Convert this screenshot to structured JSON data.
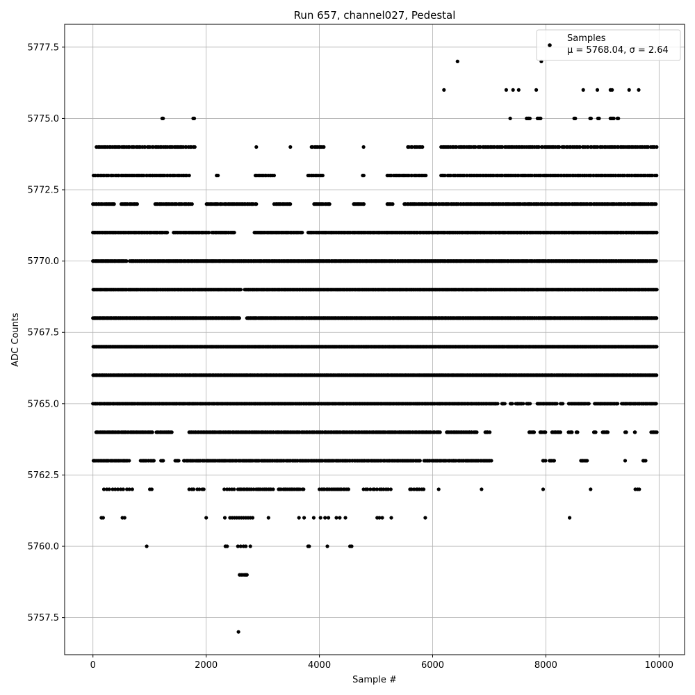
{
  "chart_data": {
    "type": "scatter",
    "title": "Run 657, channel027, Pedestal",
    "xlabel": "Sample #",
    "ylabel": "ADC Counts",
    "xlim": [
      -500,
      10450
    ],
    "ylim": [
      5756.2,
      5778.3
    ],
    "xticks": [
      0,
      2000,
      4000,
      6000,
      8000,
      10000
    ],
    "xtick_labels": [
      "0",
      "2000",
      "4000",
      "6000",
      "8000",
      "10000"
    ],
    "yticks": [
      5757.5,
      5760.0,
      5762.5,
      5765.0,
      5767.5,
      5770.0,
      5772.5,
      5775.0,
      5777.5
    ],
    "ytick_labels": [
      "5757.5",
      "5760.0",
      "5762.5",
      "5765.0",
      "5767.5",
      "5770.0",
      "5772.5",
      "5775.0",
      "5777.5"
    ],
    "grid": true,
    "legend_position": "top-right",
    "legend": {
      "series_label": "Samples",
      "stats_label": "μ = 5768.04, σ = 2.64"
    },
    "series": [
      {
        "name": "Samples",
        "color": "#000000",
        "level_x_ranges": [
          {
            "y": 5757,
            "x": [
              2570
            ]
          },
          {
            "y": 5759,
            "x": [
              2590,
              2620,
              2650,
              2680,
              2700,
              2720
            ]
          },
          {
            "y": 5760,
            "x": [
              950,
              2340,
              2370,
              2560,
              2610,
              2660,
              2700,
              2780,
              3800,
              3820,
              4140,
              4540,
              4570
            ]
          },
          {
            "y": 5761,
            "x": [
              150,
              180,
              520,
              560,
              2000,
              2330,
              2420,
              2460,
              2500,
              2540,
              2580,
              2620,
              2660,
              2700,
              2740,
              2780,
              2820,
              3100,
              3640,
              3730,
              3900,
              4020,
              4100,
              4160,
              4300,
              4360,
              4460,
              5020,
              5060,
              5110,
              5270,
              5870,
              8420
            ]
          },
          {
            "y": 5776,
            "x": [
              6200,
              7300,
              7420,
              7520,
              7830,
              8660,
              8910,
              9140,
              9170,
              9470,
              9640
            ]
          },
          {
            "y": 5777,
            "x": [
              6440,
              7920
            ]
          }
        ],
        "level_ranges": [
          {
            "y": 5762,
            "x": [
              [
                190,
                720
              ]
            ],
            "step": 50,
            "jitter": 14
          },
          {
            "y": 5762,
            "x": [
              [
                1000,
                1040
              ]
            ],
            "step": 40,
            "jitter": 5
          },
          {
            "y": 5762,
            "x": [
              [
                1700,
                2000
              ]
            ],
            "step": 45,
            "jitter": 14
          },
          {
            "y": 5762,
            "x": [
              [
                2320,
                2500
              ]
            ],
            "step": 45,
            "jitter": 10
          },
          {
            "y": 5762,
            "x": [
              [
                2560,
                2850
              ],
              [
                2880,
                3200
              ],
              [
                3270,
                3720
              ]
            ],
            "step": 30,
            "jitter": 10
          },
          {
            "y": 5762,
            "x": [
              [
                4000,
                4520
              ]
            ],
            "step": 30,
            "jitter": 10
          },
          {
            "y": 5762,
            "x": [
              [
                4780,
                5290
              ]
            ],
            "step": 40,
            "jitter": 14
          },
          {
            "y": 5762,
            "x": [
              [
                5600,
                5870
              ],
              [
                6100,
                6110
              ],
              [
                6860,
                6870
              ],
              [
                7950,
                7960
              ],
              [
                8790,
                8800
              ],
              [
                9580,
                9650
              ]
            ],
            "step": 35,
            "jitter": 10
          },
          {
            "y": 5763,
            "x": [
              [
                0,
                650
              ],
              [
                840,
                1100
              ],
              [
                1200,
                1250
              ],
              [
                1450,
                1520
              ],
              [
                1600,
                5800
              ],
              [
                5850,
                7050
              ],
              [
                7950,
                8000
              ],
              [
                8060,
                8160
              ],
              [
                8620,
                8740
              ],
              [
                9400,
                9420
              ],
              [
                9720,
                9780
              ]
            ],
            "step": 22,
            "jitter": 10
          },
          {
            "y": 5764,
            "x": [
              [
                50,
                1050
              ],
              [
                1120,
                1400
              ],
              [
                1700,
                6150
              ],
              [
                6240,
                6780
              ],
              [
                6920,
                7010
              ],
              [
                7700,
                7800
              ],
              [
                7900,
                8000
              ],
              [
                8100,
                8260
              ],
              [
                8400,
                8460
              ],
              [
                8540,
                8560
              ],
              [
                8840,
                8880
              ],
              [
                9000,
                9100
              ],
              [
                9400,
                9420
              ],
              [
                9560,
                9580
              ],
              [
                9860,
                9960
              ]
            ],
            "step": 20,
            "jitter": 10
          },
          {
            "y": 5765,
            "x": [
              [
                0,
                7150
              ],
              [
                7220,
                7290
              ],
              [
                7370,
                7410
              ],
              [
                7470,
                7600
              ],
              [
                7660,
                7720
              ],
              [
                7850,
                8200
              ],
              [
                8260,
                8300
              ],
              [
                8400,
                8760
              ],
              [
                8860,
                9280
              ],
              [
                9340,
                9960
              ]
            ],
            "step": 18,
            "jitter": 8
          },
          {
            "y": 5766,
            "x": [
              [
                0,
                9960
              ]
            ],
            "step": 14,
            "jitter": 6
          },
          {
            "y": 5767,
            "x": [
              [
                0,
                9960
              ]
            ],
            "step": 12,
            "jitter": 6
          },
          {
            "y": 5768,
            "x": [
              [
                0,
                2600
              ],
              [
                2720,
                9960
              ]
            ],
            "step": 14,
            "jitter": 6
          },
          {
            "y": 5769,
            "x": [
              [
                0,
                2620
              ],
              [
                2680,
                9960
              ]
            ],
            "step": 14,
            "jitter": 6
          },
          {
            "y": 5770,
            "x": [
              [
                0,
                600
              ],
              [
                650,
                9960
              ]
            ],
            "step": 16,
            "jitter": 8
          },
          {
            "y": 5771,
            "x": [
              [
                0,
                1320
              ],
              [
                1420,
                2050
              ],
              [
                2100,
                2500
              ],
              [
                2850,
                3700
              ],
              [
                3800,
                9960
              ]
            ],
            "step": 18,
            "jitter": 8
          },
          {
            "y": 5772,
            "x": [
              [
                0,
                400
              ],
              [
                500,
                800
              ],
              [
                1100,
                1750
              ],
              [
                2000,
                2900
              ],
              [
                3200,
                3500
              ],
              [
                3900,
                4200
              ],
              [
                4600,
                4800
              ],
              [
                5200,
                5300
              ],
              [
                5500,
                9960
              ]
            ],
            "step": 24,
            "jitter": 10
          },
          {
            "y": 5773,
            "x": [
              [
                0,
                1700
              ],
              [
                2180,
                2220
              ],
              [
                2860,
                3200
              ],
              [
                3800,
                4080
              ],
              [
                4760,
                4800
              ],
              [
                5200,
                5900
              ],
              [
                6150,
                9960
              ]
            ],
            "step": 26,
            "jitter": 12
          },
          {
            "y": 5774,
            "x": [
              [
                60,
                1800
              ],
              [
                2880,
                2900
              ],
              [
                3480,
                3500
              ],
              [
                3860,
                4100
              ],
              [
                4780,
                4800
              ],
              [
                5560,
                5820
              ],
              [
                6150,
                9960
              ]
            ],
            "step": 28,
            "jitter": 12
          },
          {
            "y": 5775,
            "x": [
              [
                1220,
                1240
              ],
              [
                1770,
                1790
              ],
              [
                7370,
                7380
              ],
              [
                7660,
                7720
              ],
              [
                7850,
                7920
              ],
              [
                8500,
                8520
              ],
              [
                8780,
                8800
              ],
              [
                8920,
                8940
              ],
              [
                9140,
                9200
              ],
              [
                9260,
                9280
              ]
            ],
            "step": 20,
            "jitter": 5
          }
        ]
      }
    ]
  }
}
